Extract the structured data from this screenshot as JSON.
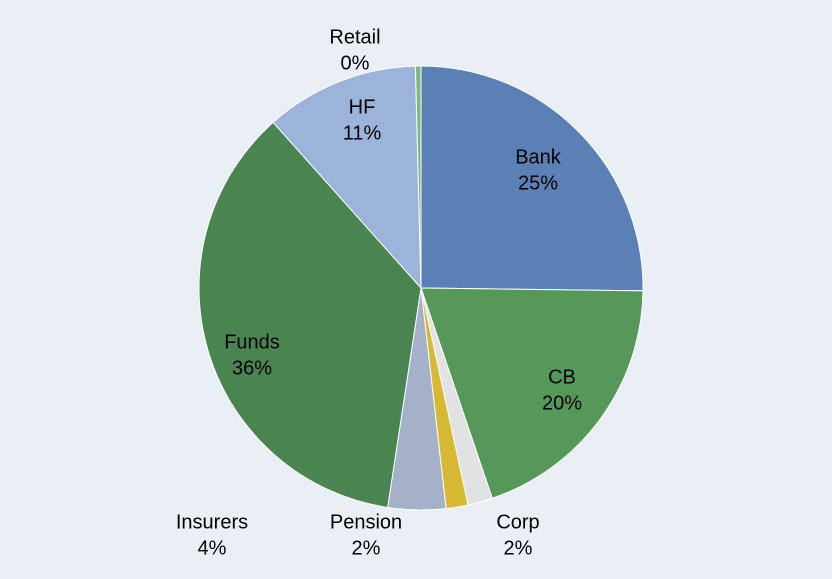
{
  "chart_data": {
    "type": "pie",
    "categories": [
      "Bank",
      "CB",
      "Corp",
      "Pension",
      "Insurers",
      "Funds",
      "HF",
      "Retail"
    ],
    "values": [
      25.2,
      19.6,
      1.8,
      1.6,
      4.2,
      36.0,
      11.2,
      0.4
    ],
    "value_labels": [
      "25%",
      "20%",
      "2%",
      "2%",
      "4%",
      "36%",
      "11%",
      "0%"
    ],
    "colors": [
      "#5a80b6",
      "#55985a",
      "#e2e2e2",
      "#d8b935",
      "#a5b0c9",
      "#4a8450",
      "#9cb3da",
      "#7fb87a"
    ]
  }
}
